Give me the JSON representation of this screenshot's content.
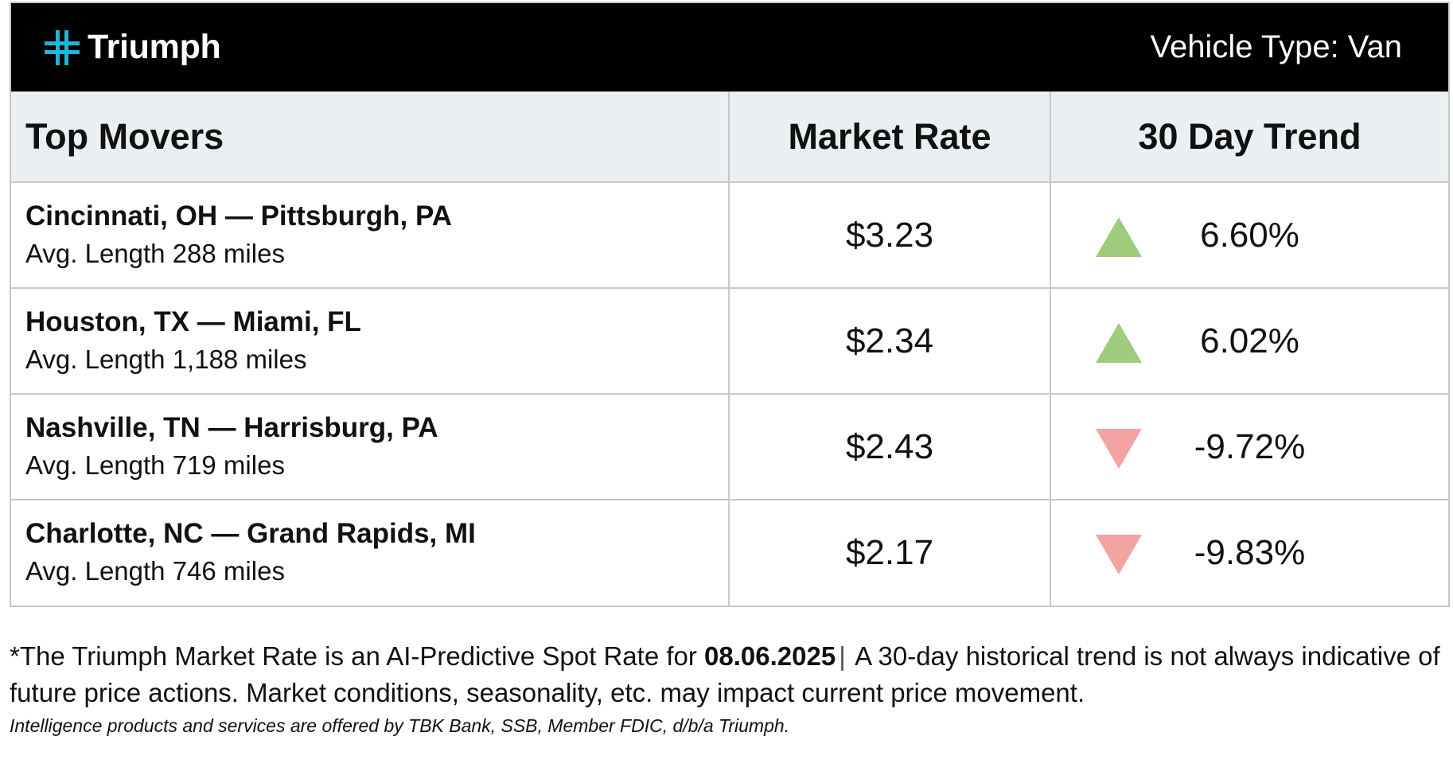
{
  "header": {
    "brand": "Triumph",
    "logo_icon": "triumph-cross-icon",
    "vehicle_type": "Vehicle Type: Van"
  },
  "colors": {
    "brand_teal": "#1fb6d6",
    "up": "#9fcb7c",
    "down": "#f4a3a3"
  },
  "table": {
    "columns": [
      "Top Movers",
      "Market Rate",
      "30 Day Trend"
    ],
    "rows": [
      {
        "lane": "Cincinnati, OH — Pittsburgh, PA",
        "length": "Avg. Length 288 miles",
        "rate": "$3.23",
        "direction": "up",
        "trend": "6.60%"
      },
      {
        "lane": "Houston, TX — Miami, FL",
        "length": "Avg. Length 1,188 miles",
        "rate": "$2.34",
        "direction": "up",
        "trend": "6.02%"
      },
      {
        "lane": "Nashville, TN — Harrisburg, PA",
        "length": "Avg. Length 719 miles",
        "rate": "$2.43",
        "direction": "down",
        "trend": "-9.72%"
      },
      {
        "lane": "Charlotte, NC — Grand Rapids, MI",
        "length": "Avg. Length 746 miles",
        "rate": "$2.17",
        "direction": "down",
        "trend": "-9.83%"
      }
    ]
  },
  "footnote": {
    "prefix": "*The Triumph Market Rate is an AI-Predictive Spot Rate for ",
    "date": "08.06.2025",
    "separator": "|",
    "suffix": " A 30-day historical trend is not always indicative of future price actions. Market conditions, seasonality, etc. may impact current price movement."
  },
  "legal": "Intelligence products and services are offered by TBK Bank, SSB, Member FDIC, d/b/a Triumph."
}
